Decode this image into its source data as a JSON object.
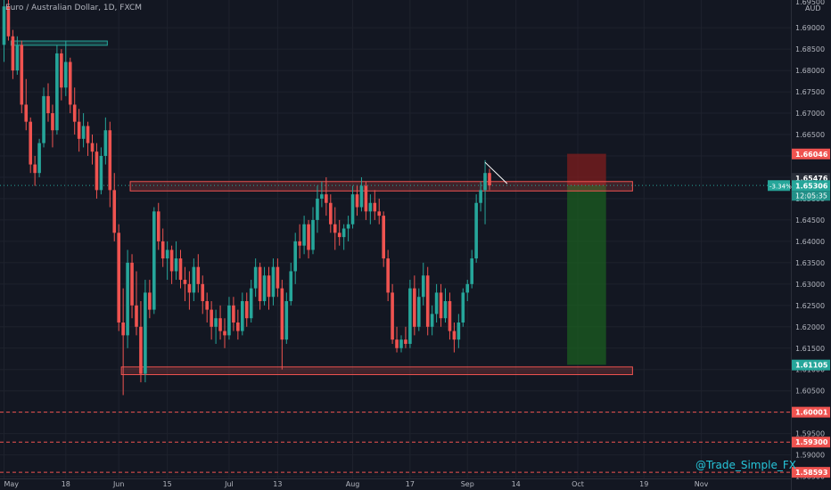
{
  "header": {
    "symbol_title": "Euro / Australian Dollar, 1D, FXCM"
  },
  "axis": {
    "currency": "AUD"
  },
  "watermark": "@Trade_Simple_FX",
  "colors": {
    "background": "#131722",
    "up": "#26a69a",
    "down": "#ef5350",
    "zone_border": "#ef5350",
    "green_box": "#1b5e20",
    "red_box": "#7f1d1d",
    "support_box_green": "#26a69a"
  },
  "price_badges": {
    "stop": "1.66046",
    "upper_zone": "1.65476",
    "current": "1.65306",
    "countdown": "12:05:35",
    "change": "-3.34%",
    "target": "1.61105",
    "level_a": "1.60001",
    "level_b": "1.59300",
    "level_c": "1.58593"
  },
  "chart_data": {
    "type": "candlestick",
    "title": "Euro / Australian Dollar, 1D, FXCM",
    "ylabel": "AUD",
    "ylim": [
      1.5845,
      1.6965
    ],
    "y_ticks": [
      "1.69000",
      "1.68500",
      "1.68000",
      "1.67500",
      "1.67000",
      "1.66500",
      "1.66000",
      "1.65500",
      "1.65000",
      "1.64500",
      "1.64000",
      "1.63500",
      "1.63000",
      "1.62500",
      "1.62000",
      "1.61500",
      "1.61000",
      "1.60500",
      "1.60000",
      "1.59500",
      "1.59000",
      "1.58500"
    ],
    "y_tick_values": [
      1.69,
      1.685,
      1.68,
      1.675,
      1.67,
      1.665,
      1.66,
      1.655,
      1.65,
      1.645,
      1.64,
      1.635,
      1.63,
      1.625,
      1.62,
      1.615,
      1.61,
      1.605,
      1.6,
      1.595,
      1.59,
      1.585
    ],
    "top_partial_tick": "1.69500",
    "x_ticks": [
      "May",
      "18",
      "Jun",
      "15",
      "Jul",
      "13",
      "Aug",
      "17",
      "Sep",
      "14",
      "Oct",
      "19",
      "Nov"
    ],
    "x_tick_index": [
      0,
      14,
      26,
      37,
      51,
      62,
      79,
      92,
      105,
      116,
      130,
      145,
      158
    ],
    "zones": [
      {
        "type": "resistance",
        "from_index": 29,
        "to_index": 142,
        "low": 1.6518,
        "high": 1.654
      },
      {
        "type": "support",
        "from_index": 27,
        "to_index": 142,
        "low": 1.6088,
        "high": 1.6106
      },
      {
        "type": "old_high",
        "from_index": 2,
        "to_index": 23,
        "low": 1.6859,
        "high": 1.6869
      }
    ],
    "trade": {
      "entry": 1.6531,
      "stop": 1.6605,
      "target": 1.6111,
      "from_index": 128,
      "to_index": 136
    },
    "dashed_levels": [
      1.60001,
      1.593,
      1.58593
    ],
    "candles": [
      {
        "o": 1.686,
        "h": 1.699,
        "l": 1.682,
        "c": 1.695
      },
      {
        "o": 1.695,
        "h": 1.697,
        "l": 1.687,
        "c": 1.688
      },
      {
        "o": 1.688,
        "h": 1.6895,
        "l": 1.678,
        "c": 1.68
      },
      {
        "o": 1.68,
        "h": 1.688,
        "l": 1.679,
        "c": 1.686
      },
      {
        "o": 1.686,
        "h": 1.687,
        "l": 1.67,
        "c": 1.672
      },
      {
        "o": 1.672,
        "h": 1.678,
        "l": 1.666,
        "c": 1.668
      },
      {
        "o": 1.668,
        "h": 1.669,
        "l": 1.656,
        "c": 1.658
      },
      {
        "o": 1.658,
        "h": 1.66,
        "l": 1.653,
        "c": 1.656
      },
      {
        "o": 1.656,
        "h": 1.664,
        "l": 1.655,
        "c": 1.663
      },
      {
        "o": 1.663,
        "h": 1.676,
        "l": 1.662,
        "c": 1.674
      },
      {
        "o": 1.674,
        "h": 1.677,
        "l": 1.668,
        "c": 1.67
      },
      {
        "o": 1.67,
        "h": 1.672,
        "l": 1.662,
        "c": 1.666
      },
      {
        "o": 1.666,
        "h": 1.686,
        "l": 1.665,
        "c": 1.684
      },
      {
        "o": 1.684,
        "h": 1.685,
        "l": 1.673,
        "c": 1.676
      },
      {
        "o": 1.676,
        "h": 1.687,
        "l": 1.674,
        "c": 1.682
      },
      {
        "o": 1.682,
        "h": 1.683,
        "l": 1.67,
        "c": 1.672
      },
      {
        "o": 1.672,
        "h": 1.676,
        "l": 1.665,
        "c": 1.668
      },
      {
        "o": 1.668,
        "h": 1.671,
        "l": 1.661,
        "c": 1.664
      },
      {
        "o": 1.664,
        "h": 1.67,
        "l": 1.662,
        "c": 1.667
      },
      {
        "o": 1.667,
        "h": 1.668,
        "l": 1.66,
        "c": 1.663
      },
      {
        "o": 1.663,
        "h": 1.665,
        "l": 1.658,
        "c": 1.661
      },
      {
        "o": 1.661,
        "h": 1.663,
        "l": 1.65,
        "c": 1.652
      },
      {
        "o": 1.652,
        "h": 1.662,
        "l": 1.651,
        "c": 1.66
      },
      {
        "o": 1.66,
        "h": 1.669,
        "l": 1.658,
        "c": 1.666
      },
      {
        "o": 1.666,
        "h": 1.668,
        "l": 1.648,
        "c": 1.652
      },
      {
        "o": 1.652,
        "h": 1.656,
        "l": 1.64,
        "c": 1.642
      },
      {
        "o": 1.642,
        "h": 1.644,
        "l": 1.619,
        "c": 1.621
      },
      {
        "o": 1.621,
        "h": 1.629,
        "l": 1.604,
        "c": 1.618
      },
      {
        "o": 1.618,
        "h": 1.638,
        "l": 1.615,
        "c": 1.635
      },
      {
        "o": 1.635,
        "h": 1.637,
        "l": 1.622,
        "c": 1.625
      },
      {
        "o": 1.625,
        "h": 1.633,
        "l": 1.618,
        "c": 1.62
      },
      {
        "o": 1.62,
        "h": 1.626,
        "l": 1.607,
        "c": 1.609
      },
      {
        "o": 1.609,
        "h": 1.631,
        "l": 1.607,
        "c": 1.628
      },
      {
        "o": 1.628,
        "h": 1.631,
        "l": 1.622,
        "c": 1.624
      },
      {
        "o": 1.624,
        "h": 1.648,
        "l": 1.623,
        "c": 1.647
      },
      {
        "o": 1.647,
        "h": 1.649,
        "l": 1.638,
        "c": 1.64
      },
      {
        "o": 1.64,
        "h": 1.643,
        "l": 1.634,
        "c": 1.636
      },
      {
        "o": 1.636,
        "h": 1.64,
        "l": 1.631,
        "c": 1.638
      },
      {
        "o": 1.638,
        "h": 1.639,
        "l": 1.63,
        "c": 1.633
      },
      {
        "o": 1.633,
        "h": 1.64,
        "l": 1.631,
        "c": 1.636
      },
      {
        "o": 1.636,
        "h": 1.638,
        "l": 1.629,
        "c": 1.631
      },
      {
        "o": 1.631,
        "h": 1.634,
        "l": 1.626,
        "c": 1.63
      },
      {
        "o": 1.63,
        "h": 1.633,
        "l": 1.624,
        "c": 1.628
      },
      {
        "o": 1.628,
        "h": 1.636,
        "l": 1.626,
        "c": 1.634
      },
      {
        "o": 1.634,
        "h": 1.637,
        "l": 1.628,
        "c": 1.63
      },
      {
        "o": 1.63,
        "h": 1.632,
        "l": 1.623,
        "c": 1.626
      },
      {
        "o": 1.626,
        "h": 1.628,
        "l": 1.621,
        "c": 1.624
      },
      {
        "o": 1.624,
        "h": 1.626,
        "l": 1.617,
        "c": 1.62
      },
      {
        "o": 1.62,
        "h": 1.624,
        "l": 1.616,
        "c": 1.622
      },
      {
        "o": 1.622,
        "h": 1.625,
        "l": 1.617,
        "c": 1.619
      },
      {
        "o": 1.619,
        "h": 1.622,
        "l": 1.615,
        "c": 1.618
      },
      {
        "o": 1.618,
        "h": 1.627,
        "l": 1.617,
        "c": 1.625
      },
      {
        "o": 1.625,
        "h": 1.627,
        "l": 1.619,
        "c": 1.621
      },
      {
        "o": 1.621,
        "h": 1.624,
        "l": 1.617,
        "c": 1.619
      },
      {
        "o": 1.619,
        "h": 1.628,
        "l": 1.618,
        "c": 1.626
      },
      {
        "o": 1.626,
        "h": 1.628,
        "l": 1.62,
        "c": 1.622
      },
      {
        "o": 1.622,
        "h": 1.631,
        "l": 1.621,
        "c": 1.629
      },
      {
        "o": 1.629,
        "h": 1.636,
        "l": 1.627,
        "c": 1.634
      },
      {
        "o": 1.634,
        "h": 1.635,
        "l": 1.624,
        "c": 1.626
      },
      {
        "o": 1.626,
        "h": 1.634,
        "l": 1.625,
        "c": 1.632
      },
      {
        "o": 1.632,
        "h": 1.634,
        "l": 1.624,
        "c": 1.627
      },
      {
        "o": 1.627,
        "h": 1.636,
        "l": 1.625,
        "c": 1.634
      },
      {
        "o": 1.634,
        "h": 1.636,
        "l": 1.627,
        "c": 1.629
      },
      {
        "o": 1.629,
        "h": 1.631,
        "l": 1.61,
        "c": 1.617
      },
      {
        "o": 1.617,
        "h": 1.628,
        "l": 1.616,
        "c": 1.626
      },
      {
        "o": 1.626,
        "h": 1.635,
        "l": 1.625,
        "c": 1.633
      },
      {
        "o": 1.633,
        "h": 1.642,
        "l": 1.63,
        "c": 1.64
      },
      {
        "o": 1.64,
        "h": 1.644,
        "l": 1.636,
        "c": 1.639
      },
      {
        "o": 1.639,
        "h": 1.646,
        "l": 1.637,
        "c": 1.644
      },
      {
        "o": 1.644,
        "h": 1.645,
        "l": 1.636,
        "c": 1.638
      },
      {
        "o": 1.638,
        "h": 1.648,
        "l": 1.637,
        "c": 1.645
      },
      {
        "o": 1.645,
        "h": 1.653,
        "l": 1.642,
        "c": 1.65
      },
      {
        "o": 1.65,
        "h": 1.654,
        "l": 1.648,
        "c": 1.651
      },
      {
        "o": 1.651,
        "h": 1.655,
        "l": 1.646,
        "c": 1.649
      },
      {
        "o": 1.649,
        "h": 1.651,
        "l": 1.642,
        "c": 1.644
      },
      {
        "o": 1.644,
        "h": 1.648,
        "l": 1.638,
        "c": 1.642
      },
      {
        "o": 1.642,
        "h": 1.645,
        "l": 1.639,
        "c": 1.641
      },
      {
        "o": 1.641,
        "h": 1.644,
        "l": 1.638,
        "c": 1.643
      },
      {
        "o": 1.643,
        "h": 1.646,
        "l": 1.64,
        "c": 1.644
      },
      {
        "o": 1.644,
        "h": 1.653,
        "l": 1.643,
        "c": 1.651
      },
      {
        "o": 1.651,
        "h": 1.653,
        "l": 1.646,
        "c": 1.648
      },
      {
        "o": 1.648,
        "h": 1.655,
        "l": 1.647,
        "c": 1.653
      },
      {
        "o": 1.653,
        "h": 1.654,
        "l": 1.645,
        "c": 1.647
      },
      {
        "o": 1.647,
        "h": 1.651,
        "l": 1.644,
        "c": 1.649
      },
      {
        "o": 1.649,
        "h": 1.652,
        "l": 1.645,
        "c": 1.647
      },
      {
        "o": 1.647,
        "h": 1.65,
        "l": 1.644,
        "c": 1.646
      },
      {
        "o": 1.646,
        "h": 1.647,
        "l": 1.634,
        "c": 1.636
      },
      {
        "o": 1.636,
        "h": 1.638,
        "l": 1.626,
        "c": 1.628
      },
      {
        "o": 1.628,
        "h": 1.63,
        "l": 1.616,
        "c": 1.617
      },
      {
        "o": 1.617,
        "h": 1.62,
        "l": 1.614,
        "c": 1.615
      },
      {
        "o": 1.615,
        "h": 1.618,
        "l": 1.614,
        "c": 1.617
      },
      {
        "o": 1.617,
        "h": 1.62,
        "l": 1.615,
        "c": 1.616
      },
      {
        "o": 1.616,
        "h": 1.631,
        "l": 1.615,
        "c": 1.629
      },
      {
        "o": 1.629,
        "h": 1.632,
        "l": 1.618,
        "c": 1.62
      },
      {
        "o": 1.62,
        "h": 1.629,
        "l": 1.619,
        "c": 1.627
      },
      {
        "o": 1.627,
        "h": 1.635,
        "l": 1.625,
        "c": 1.632
      },
      {
        "o": 1.632,
        "h": 1.634,
        "l": 1.618,
        "c": 1.62
      },
      {
        "o": 1.62,
        "h": 1.625,
        "l": 1.618,
        "c": 1.623
      },
      {
        "o": 1.623,
        "h": 1.63,
        "l": 1.621,
        "c": 1.628
      },
      {
        "o": 1.628,
        "h": 1.63,
        "l": 1.62,
        "c": 1.622
      },
      {
        "o": 1.622,
        "h": 1.629,
        "l": 1.621,
        "c": 1.626
      },
      {
        "o": 1.626,
        "h": 1.628,
        "l": 1.617,
        "c": 1.619
      },
      {
        "o": 1.619,
        "h": 1.621,
        "l": 1.614,
        "c": 1.617
      },
      {
        "o": 1.617,
        "h": 1.623,
        "l": 1.615,
        "c": 1.621
      },
      {
        "o": 1.621,
        "h": 1.629,
        "l": 1.62,
        "c": 1.628
      },
      {
        "o": 1.628,
        "h": 1.631,
        "l": 1.626,
        "c": 1.63
      },
      {
        "o": 1.63,
        "h": 1.638,
        "l": 1.629,
        "c": 1.636
      },
      {
        "o": 1.636,
        "h": 1.651,
        "l": 1.635,
        "c": 1.649
      },
      {
        "o": 1.649,
        "h": 1.654,
        "l": 1.647,
        "c": 1.652
      },
      {
        "o": 1.652,
        "h": 1.659,
        "l": 1.644,
        "c": 1.656
      },
      {
        "o": 1.656,
        "h": 1.657,
        "l": 1.652,
        "c": 1.6531
      }
    ]
  }
}
